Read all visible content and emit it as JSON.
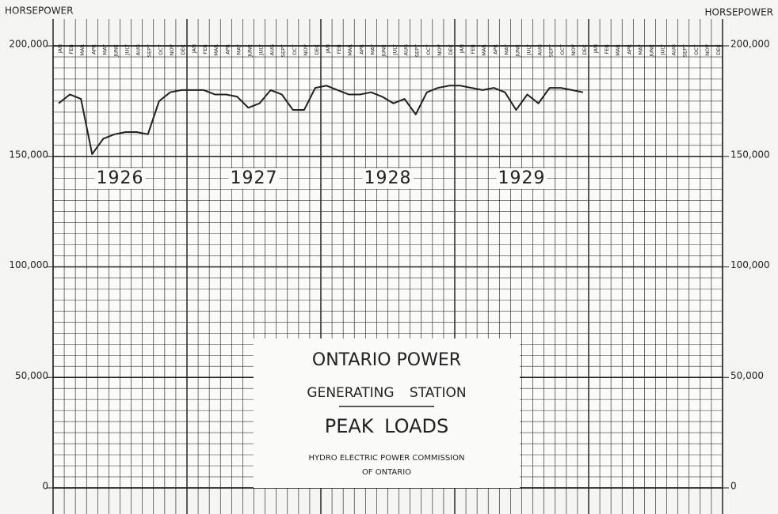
{
  "chart_data": {
    "type": "line",
    "y_label": "HORSEPOWER",
    "title": "ONTARIO POWER",
    "subtitle": "GENERATING STATION",
    "heading": "PEAK LOADS",
    "source": [
      "HYDRO ELECTRIC POWER COMMISSION",
      "OF ONTARIO"
    ],
    "annotations": [
      "1926",
      "1927",
      "1928",
      "1929"
    ],
    "categories": [
      "JAN",
      "FEB",
      "MAR",
      "APR",
      "MAY",
      "JUNE",
      "JULY",
      "AUG",
      "SEPT",
      "OCT",
      "NOV",
      "DEC",
      "JAN",
      "FEB",
      "MAR",
      "APR",
      "MAY",
      "JUNE",
      "JULY",
      "AUG",
      "SEPT",
      "OCT",
      "NOV",
      "DEC",
      "JAN",
      "FEB",
      "MAR",
      "APR",
      "MAY",
      "JUNE",
      "JULY",
      "AUG",
      "SEPT",
      "OCT",
      "NOV",
      "DEC",
      "JAN",
      "FEB",
      "MAR",
      "APR",
      "MAY",
      "JUNE",
      "JULY",
      "AUG",
      "SEPT",
      "OCT",
      "NOV",
      "DEC",
      "JAN",
      "FEB",
      "MAR",
      "APR",
      "MAY",
      "JUNE",
      "JULY",
      "AUG",
      "SEPT",
      "OCT",
      "NOV",
      "DEC"
    ],
    "values": [
      174000,
      178000,
      176000,
      151000,
      158000,
      160000,
      161000,
      161000,
      160000,
      175000,
      179000,
      180000,
      180000,
      180000,
      178000,
      178000,
      177000,
      172000,
      174000,
      180000,
      178000,
      171000,
      171000,
      181000,
      182000,
      180000,
      178000,
      178000,
      179000,
      177000,
      174000,
      176000,
      169000,
      179000,
      181000,
      182000,
      182000,
      181000,
      180000,
      181000,
      179000,
      171000,
      178000,
      174000,
      181000,
      181000,
      180000,
      179000,
      null,
      null,
      null,
      null,
      null,
      null,
      null,
      null,
      null,
      null,
      null,
      null
    ],
    "color": "#222222",
    "ylim": [
      0,
      200000
    ],
    "yticks": [
      0,
      {
        "value": 50000,
        "label": "50,000"
      },
      {
        "value": 100000,
        "label": "100,000"
      },
      {
        "value": 150000,
        "label": "150,000"
      },
      {
        "value": 200000,
        "label": "200,000"
      }
    ],
    "y_minor_step": 5000,
    "grid": true
  }
}
